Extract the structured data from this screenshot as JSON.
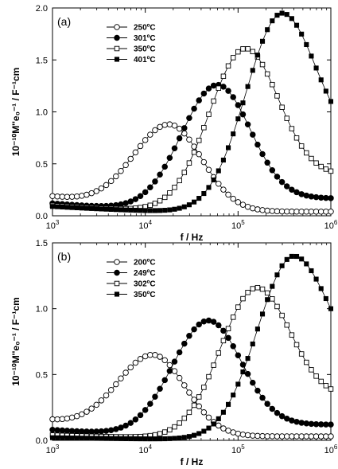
{
  "chart_data": [
    {
      "type": "scatter",
      "panel_label": "(a)",
      "xlabel": "f / Hz",
      "ylabel": "10⁻¹⁰M''e₀⁻¹ / F⁻¹cm",
      "x_scale": "log",
      "xlim": [
        1000,
        1000000
      ],
      "ylim": [
        0,
        2.0
      ],
      "x_ticks": [
        {
          "value": 1000,
          "base": "10",
          "exp": "3"
        },
        {
          "value": 10000,
          "base": "10",
          "exp": "4"
        },
        {
          "value": 100000,
          "base": "10",
          "exp": "5"
        },
        {
          "value": 1000000,
          "base": "10",
          "exp": "6"
        }
      ],
      "y_ticks": [
        {
          "value": 0.0,
          "label": "0.0"
        },
        {
          "value": 0.5,
          "label": "0.5"
        },
        {
          "value": 1.0,
          "label": "1.0"
        },
        {
          "value": 1.5,
          "label": "1.5"
        },
        {
          "value": 2.0,
          "label": "2.0"
        }
      ],
      "legend_position": "top-left",
      "series": [
        {
          "name": "250ºC",
          "marker": "open-circle",
          "peak_frequency_hz": 18000,
          "peak_value": 0.88,
          "low_frequency_value": 0.19,
          "high_frequency_value": 0.04
        },
        {
          "name": "301ºC",
          "marker": "filled-circle",
          "peak_frequency_hz": 60000,
          "peak_value": 1.26,
          "low_frequency_value": 0.12,
          "high_frequency_value": 0.17
        },
        {
          "name": "350ºC",
          "marker": "open-square",
          "peak_frequency_hz": 120000,
          "peak_value": 1.61,
          "low_frequency_value": 0.1,
          "high_frequency_value": 0.43
        },
        {
          "name": "401ºC",
          "marker": "filled-square",
          "peak_frequency_hz": 300000,
          "peak_value": 1.95,
          "low_frequency_value": 0.09,
          "high_frequency_value": 1.1
        }
      ]
    },
    {
      "type": "scatter",
      "panel_label": "(b)",
      "xlabel": "f / Hz",
      "ylabel": "10⁻¹⁰M''e₀⁻¹ / F⁻¹cm",
      "x_scale": "log",
      "xlim": [
        1000,
        1000000
      ],
      "ylim": [
        0,
        1.5
      ],
      "x_ticks": [
        {
          "value": 1000,
          "base": "10",
          "exp": "3"
        },
        {
          "value": 10000,
          "base": "10",
          "exp": "4"
        },
        {
          "value": 100000,
          "base": "10",
          "exp": "5"
        },
        {
          "value": 1000000,
          "base": "10",
          "exp": "6"
        }
      ],
      "y_ticks": [
        {
          "value": 0.0,
          "label": "0.0"
        },
        {
          "value": 0.5,
          "label": "0.5"
        },
        {
          "value": 1.0,
          "label": "1.0"
        },
        {
          "value": 1.5,
          "label": "1.5"
        }
      ],
      "legend_position": "top-left",
      "series": [
        {
          "name": "200ºC",
          "marker": "open-circle",
          "peak_frequency_hz": 12000,
          "peak_value": 0.65,
          "low_frequency_value": 0.16,
          "high_frequency_value": 0.03
        },
        {
          "name": "249ºC",
          "marker": "filled-circle",
          "peak_frequency_hz": 48000,
          "peak_value": 0.91,
          "low_frequency_value": 0.08,
          "high_frequency_value": 0.12
        },
        {
          "name": "302ºC",
          "marker": "open-square",
          "peak_frequency_hz": 160000,
          "peak_value": 1.16,
          "low_frequency_value": 0.04,
          "high_frequency_value": 0.39
        },
        {
          "name": "350ºC",
          "marker": "filled-square",
          "peak_frequency_hz": 400000,
          "peak_value": 1.4,
          "low_frequency_value": 0.02,
          "high_frequency_value": 1.0
        }
      ]
    }
  ]
}
